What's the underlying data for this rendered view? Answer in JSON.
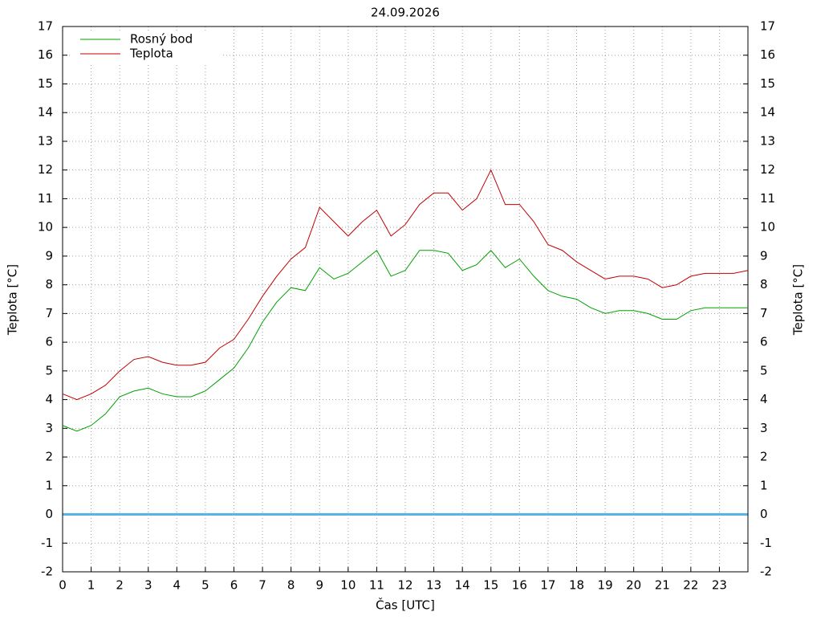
{
  "chart_data": {
    "type": "line",
    "title": "24.09.2026",
    "xlabel": "Čas [UTC]",
    "ylabel": "Teplota [°C]",
    "y2label": "Teplota [°C]",
    "x": [
      0,
      0.5,
      1,
      1.5,
      2,
      2.5,
      3,
      3.5,
      4,
      4.5,
      5,
      5.5,
      6,
      6.5,
      7,
      7.5,
      8,
      8.5,
      9,
      9.5,
      10,
      10.5,
      11,
      11.5,
      12,
      12.5,
      13,
      13.5,
      14,
      14.5,
      15,
      15.5,
      16,
      16.5,
      17,
      17.5,
      18,
      18.5,
      19,
      19.5,
      20,
      20.5,
      21,
      21.5,
      22,
      22.5,
      23,
      23.5,
      24
    ],
    "series": [
      {
        "name": "Rosný bod",
        "color": "#00a000",
        "values": [
          3.1,
          2.9,
          3.1,
          3.5,
          4.1,
          4.3,
          4.4,
          4.2,
          4.1,
          4.1,
          4.3,
          4.7,
          5.1,
          5.8,
          6.7,
          7.4,
          7.9,
          7.8,
          8.6,
          8.2,
          8.4,
          8.8,
          9.2,
          8.3,
          8.5,
          9.2,
          9.2,
          9.1,
          8.5,
          8.7,
          9.2,
          8.6,
          8.9,
          8.3,
          7.8,
          7.6,
          7.5,
          7.2,
          7.0,
          7.1,
          7.1,
          7.0,
          6.8,
          6.8,
          7.1,
          7.2,
          7.2,
          7.2,
          7.2
        ]
      },
      {
        "name": "Teplota",
        "color": "#c00000",
        "values": [
          4.2,
          4.0,
          4.2,
          4.5,
          5.0,
          5.4,
          5.5,
          5.3,
          5.2,
          5.2,
          5.3,
          5.8,
          6.1,
          6.8,
          7.6,
          8.3,
          8.9,
          9.3,
          10.7,
          10.2,
          9.7,
          10.2,
          10.6,
          9.7,
          10.1,
          10.8,
          11.2,
          11.2,
          10.6,
          11.0,
          12.0,
          10.8,
          10.8,
          10.2,
          9.4,
          9.2,
          8.8,
          8.5,
          8.2,
          8.3,
          8.3,
          8.2,
          7.9,
          8.0,
          8.3,
          8.4,
          8.4,
          8.4,
          8.5
        ]
      }
    ],
    "hline": 0,
    "hline_color": "#56b4e9",
    "xlim": [
      0,
      24
    ],
    "xticks": [
      0,
      1,
      2,
      3,
      4,
      5,
      6,
      7,
      8,
      9,
      10,
      11,
      12,
      13,
      14,
      15,
      16,
      17,
      18,
      19,
      20,
      21,
      22,
      23
    ],
    "ylim": [
      -2,
      17
    ],
    "yticks": [
      -2,
      -1,
      0,
      1,
      2,
      3,
      4,
      5,
      6,
      7,
      8,
      9,
      10,
      11,
      12,
      13,
      14,
      15,
      16,
      17
    ],
    "y2lim": [
      -2,
      17
    ],
    "y2ticks": [
      -2,
      -1,
      0,
      1,
      2,
      3,
      4,
      5,
      6,
      7,
      8,
      9,
      10,
      11,
      12,
      13,
      14,
      15,
      16,
      17
    ],
    "grid": true,
    "legend": "top-left"
  }
}
